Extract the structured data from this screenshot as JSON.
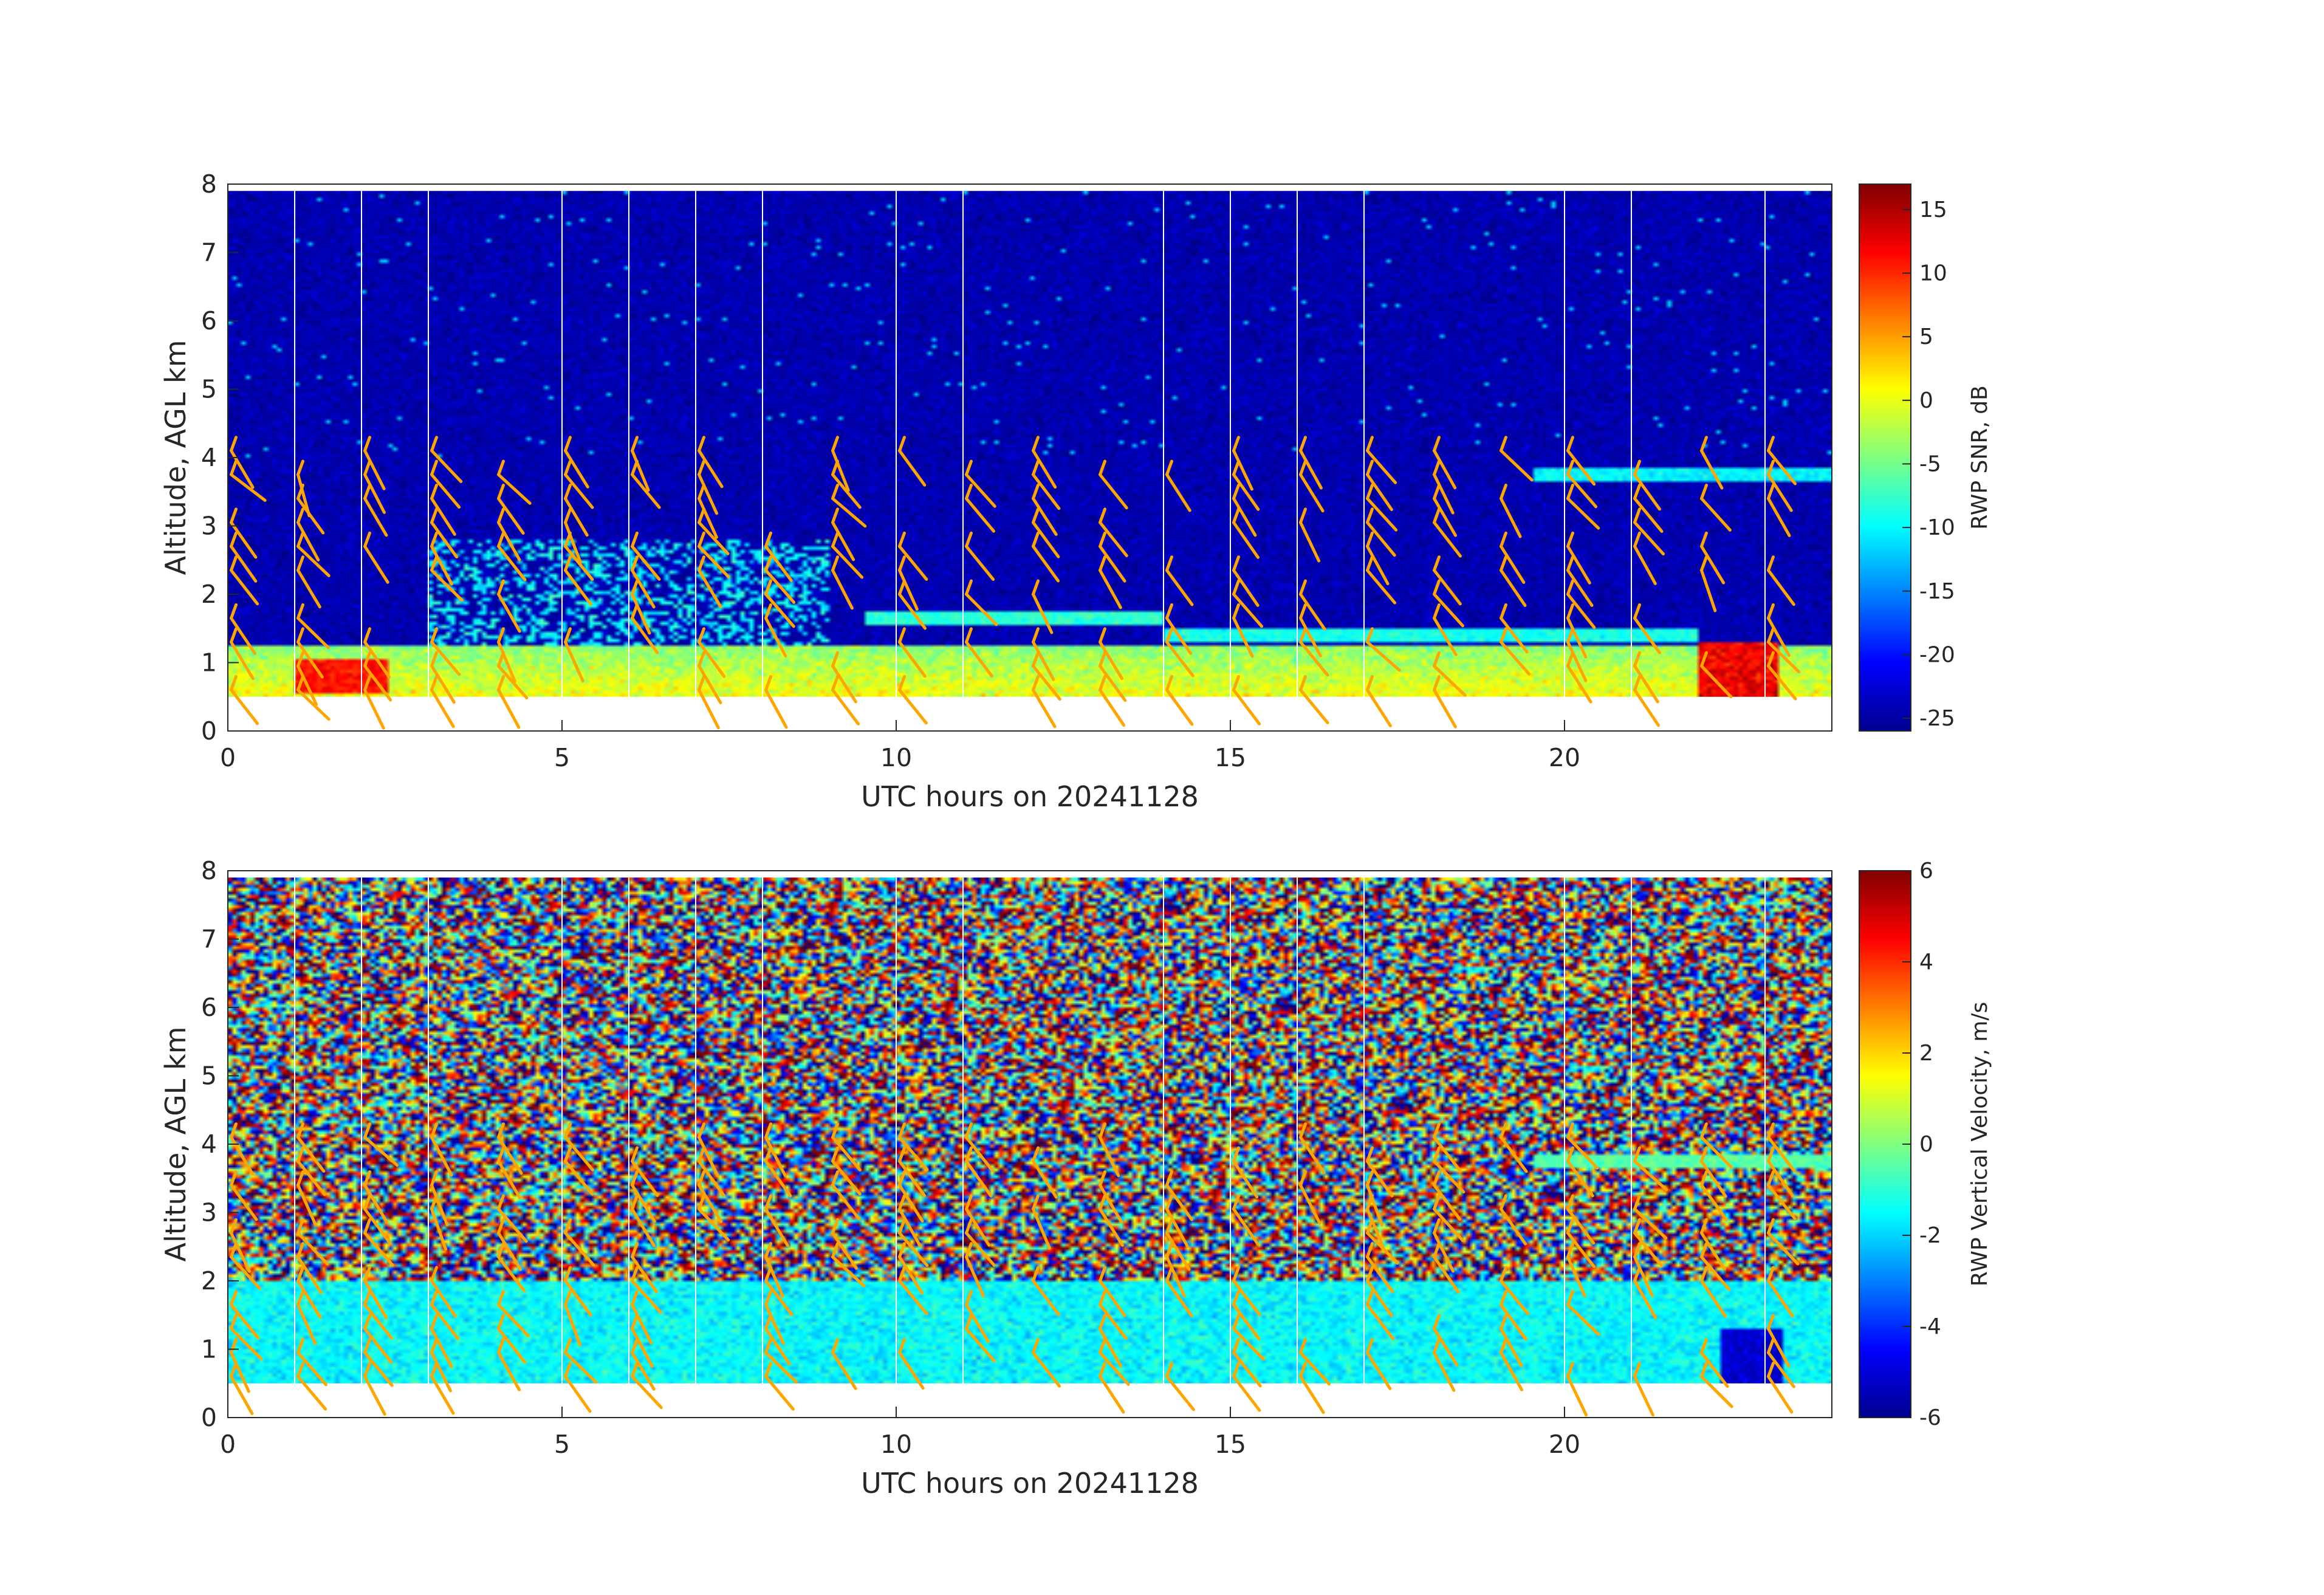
{
  "chart_data": [
    {
      "type": "heatmap",
      "name": "snr",
      "xlabel": "UTC hours on 20241128",
      "ylabel": "Altitude, AGL km",
      "xlim": [
        0,
        24
      ],
      "ylim": [
        0,
        8
      ],
      "xticks": [
        0,
        5,
        10,
        15,
        20
      ],
      "yticks": [
        0,
        1,
        2,
        3,
        4,
        5,
        6,
        7,
        8
      ],
      "data_altitude_range_km": [
        0.5,
        7.9
      ],
      "colorbar": {
        "label": "RWP SNR, dB",
        "range": [
          -26,
          17
        ],
        "ticks": [
          15,
          10,
          5,
          0,
          -5,
          -10,
          -15,
          -20,
          -25
        ],
        "colormap": "jet"
      },
      "profile_gap_hours": [
        1,
        2,
        3,
        5,
        6,
        7,
        8,
        10,
        11,
        14,
        15,
        16,
        17,
        20,
        21,
        23
      ],
      "wind_barb_color": "#ffa500",
      "features": [
        {
          "description_value": "boundary layer high SNR 0.5-1.2 km",
          "snr_db": 0
        },
        {
          "description_value": "high SNR near 0.6-1.0 km at 1-2 h",
          "snr_db": 12
        },
        {
          "description_value": "high SNR near 0.5-1.2 km at 22-23 h",
          "snr_db": 14
        },
        {
          "description_value": "elevated layer near 3.6-3.9 km from 19.5 to 24 h",
          "snr_db": -10
        },
        {
          "description_value": "background above 4 km",
          "snr_db": -24
        }
      ]
    },
    {
      "type": "heatmap",
      "name": "vertical-velocity",
      "xlabel": "UTC hours on 20241128",
      "ylabel": "Altitude, AGL km",
      "xlim": [
        0,
        24
      ],
      "ylim": [
        0,
        8
      ],
      "xticks": [
        0,
        5,
        10,
        15,
        20
      ],
      "yticks": [
        0,
        1,
        2,
        3,
        4,
        5,
        6,
        7,
        8
      ],
      "data_altitude_range_km": [
        0.5,
        7.9
      ],
      "colorbar": {
        "label": "RWP Vertical Velocity, m/s",
        "range": [
          -6,
          6
        ],
        "ticks": [
          6,
          4,
          2,
          0,
          -2,
          -4,
          -6
        ],
        "colormap": "jet"
      },
      "profile_gap_hours": [
        1,
        2,
        3,
        5,
        6,
        7,
        8,
        10,
        11,
        14,
        15,
        16,
        17,
        20,
        21,
        23
      ],
      "wind_barb_color": "#ffa500",
      "features": [
        {
          "description_value": "lower layer 0.5-2 km weak downward",
          "velocity_ms": -1.5
        },
        {
          "description_value": "noisy region above 2-4 km",
          "velocity_ms": 0
        },
        {
          "description_value": "downward near 22-23 h below 1.3 km",
          "velocity_ms": -5
        }
      ]
    }
  ],
  "plots": [
    {
      "xlabel": "UTC hours on 20241128",
      "ylabel": "Altitude, AGL km",
      "cblabel": "RWP SNR, dB",
      "xticklabels": [
        "0",
        "5",
        "10",
        "15",
        "20"
      ],
      "yticklabels": [
        "0",
        "1",
        "2",
        "3",
        "4",
        "5",
        "6",
        "7",
        "8"
      ],
      "cbticklabels": [
        "15",
        "10",
        "5",
        "0",
        "-5",
        "-10",
        "-15",
        "-20",
        "-25"
      ]
    },
    {
      "xlabel": "UTC hours on 20241128",
      "ylabel": "Altitude, AGL km",
      "cblabel": "RWP Vertical Velocity, m/s",
      "xticklabels": [
        "0",
        "5",
        "10",
        "15",
        "20"
      ],
      "yticklabels": [
        "0",
        "1",
        "2",
        "3",
        "4",
        "5",
        "6",
        "7",
        "8"
      ],
      "cbticklabels": [
        "6",
        "4",
        "2",
        "0",
        "-2",
        "-4",
        "-6"
      ]
    }
  ]
}
